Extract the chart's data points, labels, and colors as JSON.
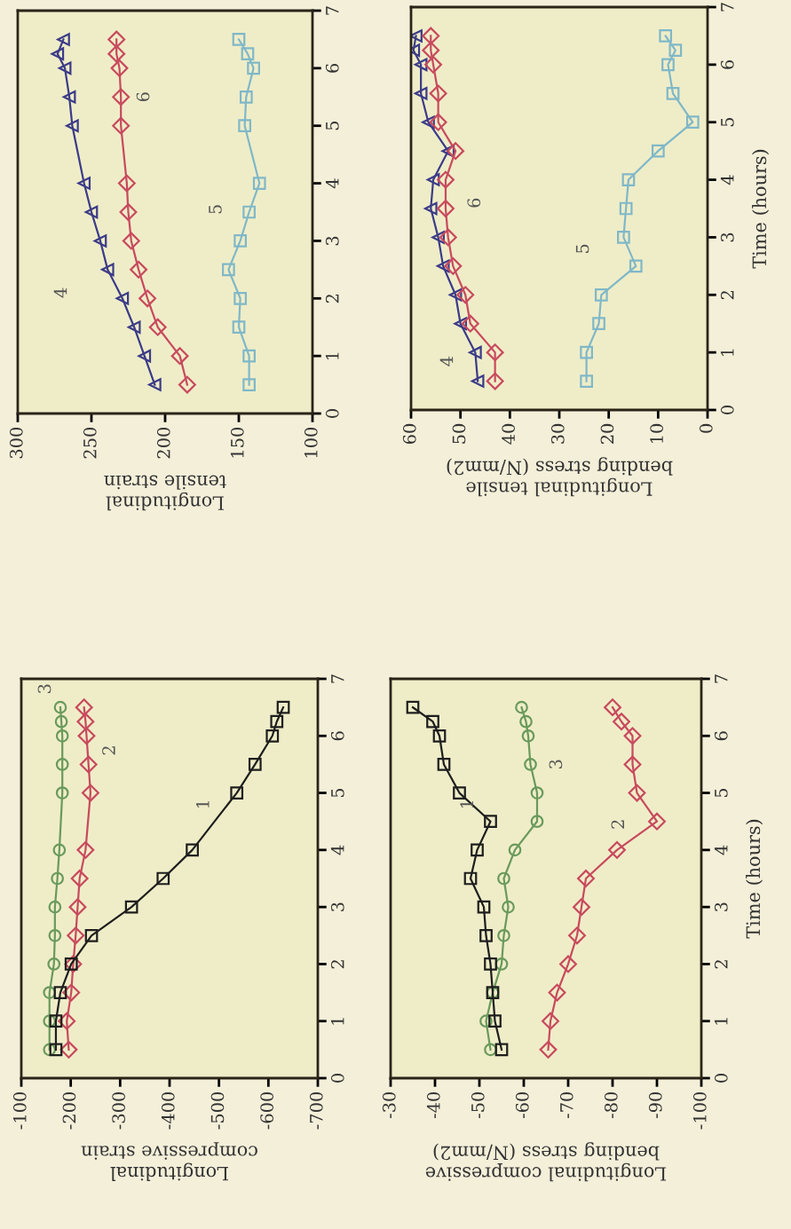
{
  "chart_data": [
    {
      "type": "line",
      "orientation": "horizontal",
      "xlabel": "Longitudinal\ntensile strain",
      "xlim": [
        300,
        100
      ],
      "xticks": [
        300,
        250,
        200,
        150,
        100
      ],
      "ylim": [
        0,
        7
      ],
      "yticks": [
        0,
        1,
        2,
        3,
        4,
        5,
        6,
        7
      ],
      "grid": false,
      "legend": false,
      "series": [
        {
          "color": "#3c3c88",
          "marker": "triangle",
          "x": [
            0.5,
            1,
            1.5,
            2,
            2.5,
            3,
            3.5,
            4,
            5,
            5.5,
            6,
            6.25,
            6.5
          ],
          "values": [
            207,
            214,
            221,
            229,
            239,
            244,
            250,
            255,
            263,
            265,
            268,
            273,
            269
          ]
        },
        {
          "color": "#c84a5e",
          "marker": "diamond",
          "x": [
            0.5,
            1,
            1.5,
            2,
            2.5,
            3,
            3.5,
            4,
            5,
            5.5,
            6,
            6.25,
            6.5
          ],
          "values": [
            185,
            190,
            205,
            212,
            218,
            223,
            225,
            226,
            230,
            230,
            231,
            233,
            233
          ]
        },
        {
          "color": "#80b8c8",
          "marker": "square",
          "x": [
            0.5,
            1,
            1.5,
            2,
            2.5,
            3,
            3.5,
            4,
            5,
            5.5,
            6,
            6.25,
            6.5
          ],
          "values": [
            143,
            143,
            150,
            149,
            157,
            149,
            143,
            136,
            146,
            145,
            140,
            144,
            150
          ]
        }
      ],
      "annotations": [
        "4",
        "5",
        "6"
      ]
    },
    {
      "type": "line",
      "orientation": "horizontal",
      "xlabel": "Longitudinal tensile\nbending stress (N/mm2)",
      "ylabel": "Time (hours)",
      "xlim": [
        60,
        0
      ],
      "xticks": [
        60,
        50,
        40,
        30,
        20,
        10,
        0
      ],
      "ylim": [
        0,
        7
      ],
      "yticks": [
        0,
        1,
        2,
        3,
        4,
        5,
        6,
        7
      ],
      "grid": false,
      "legend": false,
      "series": [
        {
          "color": "#3c3c88",
          "marker": "triangle",
          "x": [
            0.5,
            1,
            1.5,
            2,
            2.5,
            3,
            3.5,
            4,
            4.5,
            5,
            5.5,
            6,
            6.25,
            6.5
          ],
          "values": [
            46.5,
            47,
            50,
            51,
            53.5,
            54.5,
            56,
            55.5,
            52.5,
            56.5,
            58,
            58,
            59.5,
            59
          ]
        },
        {
          "color": "#c84a5e",
          "marker": "diamond",
          "x": [
            0.5,
            1,
            1.5,
            2,
            2.5,
            3,
            3.5,
            4,
            4.5,
            5,
            5.5,
            6,
            6.25,
            6.5
          ],
          "values": [
            43,
            43,
            48,
            49,
            51.5,
            52.5,
            53,
            53,
            51,
            54.5,
            54.5,
            55.5,
            56,
            56
          ]
        },
        {
          "color": "#80b8c8",
          "marker": "square",
          "x": [
            0.5,
            1,
            1.5,
            2,
            2.5,
            3,
            3.5,
            4,
            4.5,
            5,
            5.5,
            6,
            6.25,
            6.5
          ],
          "values": [
            24.5,
            24.5,
            22,
            21.5,
            14.5,
            17,
            16.5,
            16,
            10,
            3,
            7,
            8,
            6.5,
            8.5
          ]
        }
      ],
      "annotations": [
        "4",
        "5",
        "6"
      ]
    },
    {
      "type": "line",
      "orientation": "horizontal",
      "xlabel": "Longitudinal\ncompressive strain",
      "xlim": [
        -100,
        -700
      ],
      "xticks": [
        -100,
        -200,
        -300,
        -400,
        -500,
        -600,
        -700
      ],
      "ylim": [
        0,
        7
      ],
      "yticks": [
        0,
        1,
        2,
        3,
        4,
        5,
        6,
        7
      ],
      "grid": false,
      "legend": false,
      "series": [
        {
          "color": "#6a9a5c",
          "marker": "circle",
          "x": [
            0.5,
            1,
            1.5,
            2,
            2.5,
            3,
            3.5,
            4,
            5,
            5.5,
            6,
            6.25,
            6.5
          ],
          "values": [
            -157,
            -157,
            -157,
            -166,
            -168,
            -168,
            -173,
            -177,
            -183,
            -183,
            -183,
            -181,
            -179
          ]
        },
        {
          "color": "#c84a5e",
          "marker": "diamond",
          "x": [
            0.5,
            1,
            1.5,
            2,
            2.5,
            3,
            3.5,
            4,
            5,
            5.5,
            6,
            6.25,
            6.5
          ],
          "values": [
            -196,
            -192,
            -201,
            -205,
            -210,
            -214,
            -218,
            -230,
            -240,
            -236,
            -232,
            -230,
            -227
          ]
        },
        {
          "color": "#1e1e1e",
          "marker": "square",
          "x": [
            0.5,
            1,
            1.5,
            2,
            2.5,
            3,
            3.5,
            4,
            5,
            5.5,
            6,
            6.25,
            6.5
          ],
          "values": [
            -170,
            -170,
            -179,
            -201,
            -242,
            -323,
            -387,
            -446,
            -536,
            -573,
            -608,
            -617,
            -630
          ]
        }
      ],
      "annotations": [
        "1",
        "2",
        "3"
      ]
    },
    {
      "type": "line",
      "orientation": "horizontal",
      "xlabel": "Longitudinal compressive\nbending stress (N/mm2)",
      "ylabel": "Time (hours)",
      "xlim": [
        -30,
        -100
      ],
      "xticks": [
        -30,
        -40,
        -50,
        -60,
        -70,
        -80,
        -90,
        -100
      ],
      "ylim": [
        0,
        7
      ],
      "yticks": [
        0,
        1,
        2,
        3,
        4,
        5,
        6,
        7
      ],
      "grid": false,
      "legend": false,
      "series": [
        {
          "color": "#6a9a5c",
          "marker": "circle",
          "x": [
            0.5,
            1,
            1.5,
            2,
            2.5,
            3,
            3.5,
            4,
            4.5,
            5,
            5.5,
            6,
            6.25,
            6.5
          ],
          "values": [
            -52.5,
            -51.5,
            -53,
            -55,
            -55.5,
            -56.5,
            -55.5,
            -58,
            -63,
            -63,
            -61.5,
            -61,
            -60.5,
            -59.5
          ]
        },
        {
          "color": "#c84a5e",
          "marker": "diamond",
          "x": [
            0.5,
            1,
            1.5,
            2,
            2.5,
            3,
            3.5,
            4,
            4.5,
            5,
            5.5,
            6,
            6.25,
            6.5
          ],
          "values": [
            -65.5,
            -66,
            -67.5,
            -70,
            -72,
            -73,
            -74,
            -81,
            -90,
            -85.5,
            -84.5,
            -84.5,
            -82,
            -80
          ]
        },
        {
          "color": "#1e1e1e",
          "marker": "square",
          "x": [
            0.5,
            1,
            1.5,
            2,
            2.5,
            3,
            3.5,
            4,
            4.5,
            5,
            5.5,
            6,
            6.25,
            6.5
          ],
          "values": [
            -55,
            -53.5,
            -53,
            -52.5,
            -51.5,
            -51,
            -48,
            -49.5,
            -52.5,
            -45.5,
            -42,
            -41,
            -39.5,
            -35
          ]
        }
      ],
      "annotations": [
        "1",
        "2",
        "3"
      ]
    }
  ]
}
